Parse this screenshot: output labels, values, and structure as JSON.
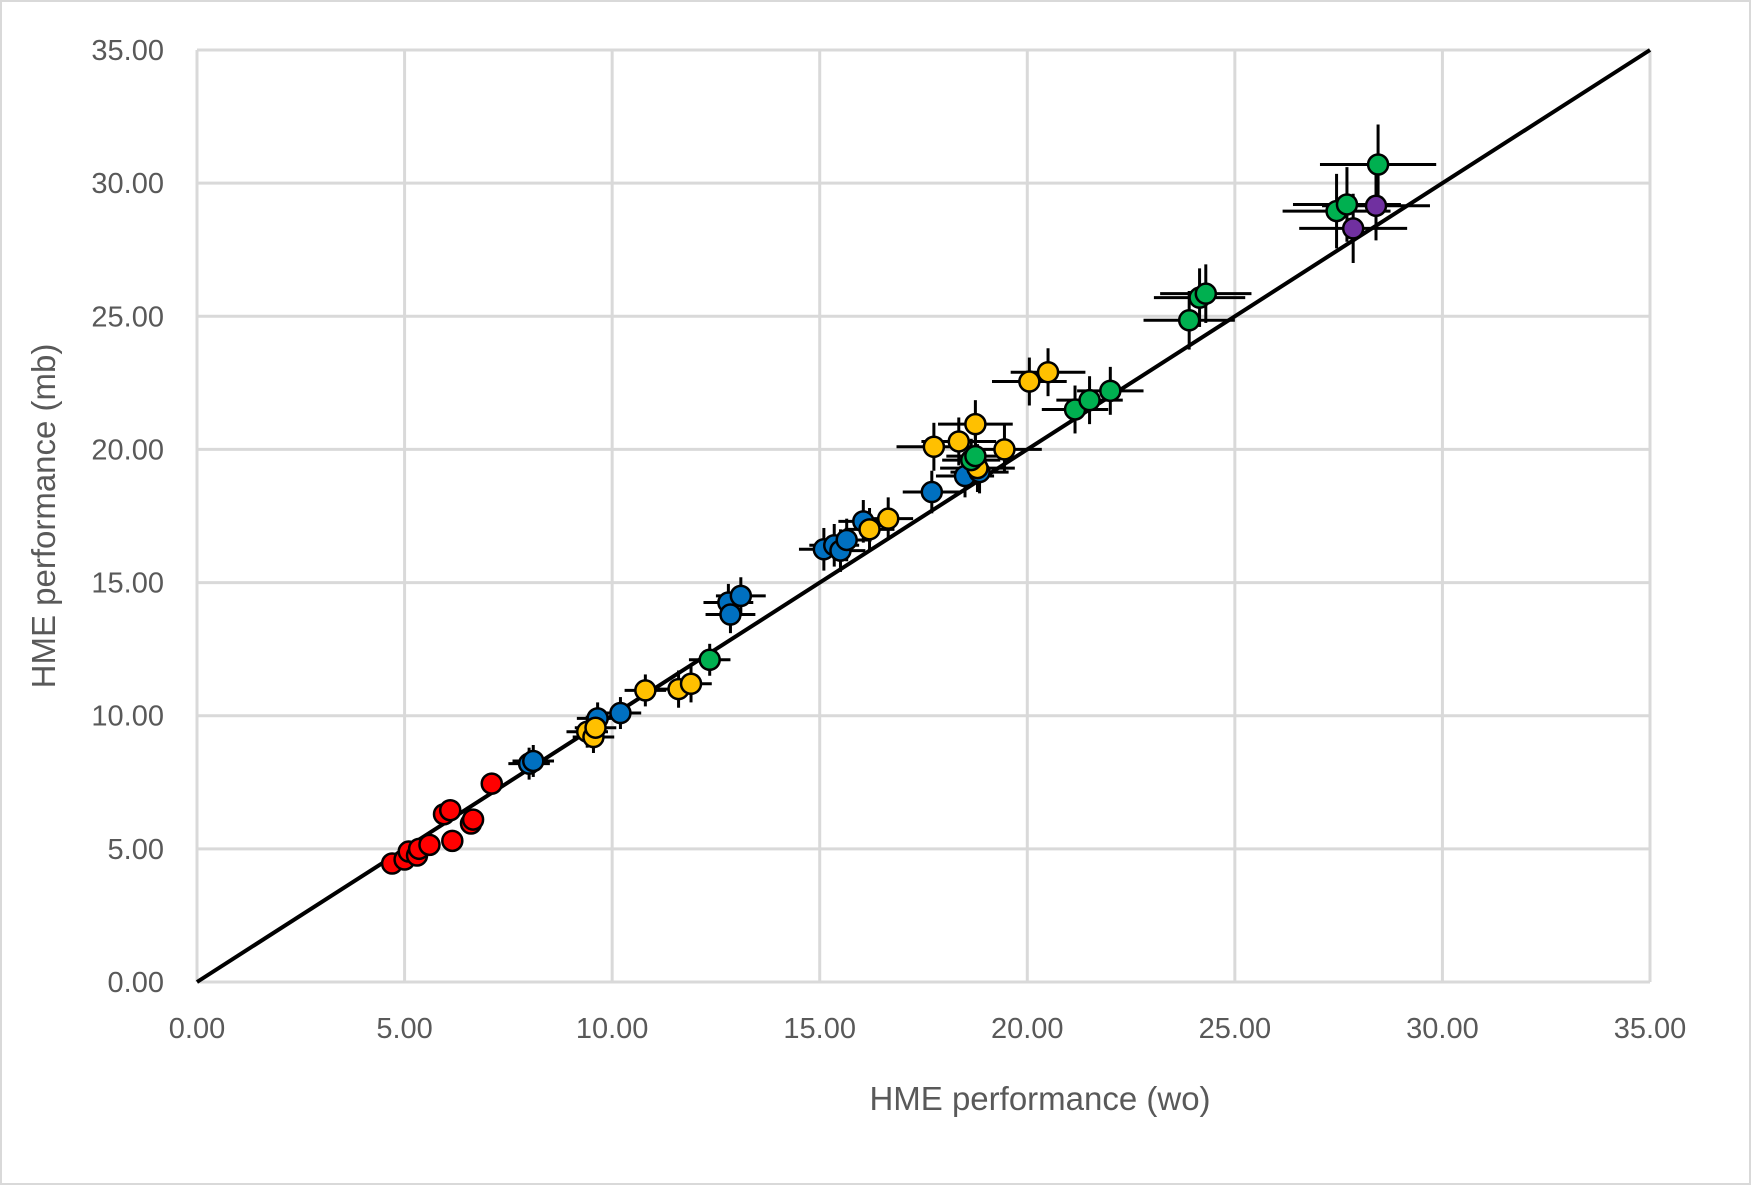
{
  "chart_data": {
    "type": "scatter",
    "title": "",
    "xlabel": "HME performance (wo)",
    "ylabel": "HME performance (mb)",
    "xlim": [
      0,
      35
    ],
    "ylim": [
      0,
      35
    ],
    "x_ticks": [
      "0.00",
      "5.00",
      "10.00",
      "15.00",
      "20.00",
      "25.00",
      "30.00",
      "35.00"
    ],
    "y_ticks": [
      "0.00",
      "5.00",
      "10.00",
      "15.00",
      "20.00",
      "25.00",
      "30.00",
      "35.00"
    ],
    "grid": true,
    "legend": "none",
    "reference_line": {
      "type": "identity",
      "from": [
        0,
        0
      ],
      "to": [
        35,
        35
      ],
      "color": "#000000"
    },
    "series": [
      {
        "color": "#ff0000",
        "points": [
          {
            "x": 4.7,
            "y": 4.45,
            "xerr": 0.15,
            "yerr": 0.15
          },
          {
            "x": 5.0,
            "y": 4.6,
            "xerr": 0.15,
            "yerr": 0.15
          },
          {
            "x": 5.1,
            "y": 4.9,
            "xerr": 0.15,
            "yerr": 0.15
          },
          {
            "x": 5.3,
            "y": 4.75,
            "xerr": 0.15,
            "yerr": 0.15
          },
          {
            "x": 5.35,
            "y": 5.0,
            "xerr": 0.15,
            "yerr": 0.15
          },
          {
            "x": 5.6,
            "y": 5.15,
            "xerr": 0.15,
            "yerr": 0.15
          },
          {
            "x": 5.95,
            "y": 6.3,
            "xerr": 0.15,
            "yerr": 0.15
          },
          {
            "x": 6.1,
            "y": 6.45,
            "xerr": 0.15,
            "yerr": 0.15
          },
          {
            "x": 6.15,
            "y": 5.3,
            "xerr": 0.15,
            "yerr": 0.15
          },
          {
            "x": 6.6,
            "y": 5.95,
            "xerr": 0.15,
            "yerr": 0.15
          },
          {
            "x": 6.65,
            "y": 6.1,
            "xerr": 0.15,
            "yerr": 0.15
          },
          {
            "x": 7.1,
            "y": 7.45,
            "xerr": 0.15,
            "yerr": 0.15
          }
        ]
      },
      {
        "color": "#0070c0",
        "points": [
          {
            "x": 8.0,
            "y": 8.2,
            "xerr": 0.5,
            "yerr": 0.6
          },
          {
            "x": 8.1,
            "y": 8.3,
            "xerr": 0.5,
            "yerr": 0.6
          },
          {
            "x": 9.65,
            "y": 9.9,
            "xerr": 0.5,
            "yerr": 0.6
          },
          {
            "x": 10.2,
            "y": 10.1,
            "xerr": 0.5,
            "yerr": 0.6
          },
          {
            "x": 12.8,
            "y": 14.25,
            "xerr": 0.6,
            "yerr": 0.7
          },
          {
            "x": 12.85,
            "y": 13.8,
            "xerr": 0.6,
            "yerr": 0.7
          },
          {
            "x": 13.1,
            "y": 14.5,
            "xerr": 0.6,
            "yerr": 0.7
          },
          {
            "x": 15.1,
            "y": 16.25,
            "xerr": 0.6,
            "yerr": 0.8
          },
          {
            "x": 15.35,
            "y": 16.4,
            "xerr": 0.6,
            "yerr": 0.8
          },
          {
            "x": 15.5,
            "y": 16.2,
            "xerr": 0.6,
            "yerr": 0.8
          },
          {
            "x": 15.65,
            "y": 16.6,
            "xerr": 0.6,
            "yerr": 0.8
          },
          {
            "x": 16.05,
            "y": 17.3,
            "xerr": 0.6,
            "yerr": 0.8
          },
          {
            "x": 17.7,
            "y": 18.4,
            "xerr": 0.7,
            "yerr": 0.8
          },
          {
            "x": 18.5,
            "y": 19.0,
            "xerr": 0.7,
            "yerr": 0.8
          },
          {
            "x": 18.85,
            "y": 19.15,
            "xerr": 0.7,
            "yerr": 0.8
          }
        ]
      },
      {
        "color": "#ffc000",
        "points": [
          {
            "x": 9.4,
            "y": 9.4,
            "xerr": 0.5,
            "yerr": 0.6
          },
          {
            "x": 9.55,
            "y": 9.2,
            "xerr": 0.5,
            "yerr": 0.6
          },
          {
            "x": 9.6,
            "y": 9.55,
            "xerr": 0.5,
            "yerr": 0.6
          },
          {
            "x": 10.8,
            "y": 10.95,
            "xerr": 0.5,
            "yerr": 0.6
          },
          {
            "x": 11.6,
            "y": 11.0,
            "xerr": 0.5,
            "yerr": 0.7
          },
          {
            "x": 11.9,
            "y": 11.2,
            "xerr": 0.5,
            "yerr": 0.7
          },
          {
            "x": 16.2,
            "y": 17.0,
            "xerr": 0.6,
            "yerr": 0.8
          },
          {
            "x": 16.65,
            "y": 17.4,
            "xerr": 0.6,
            "yerr": 0.8
          },
          {
            "x": 17.75,
            "y": 20.1,
            "xerr": 0.9,
            "yerr": 0.9
          },
          {
            "x": 18.35,
            "y": 20.3,
            "xerr": 0.9,
            "yerr": 0.9
          },
          {
            "x": 18.75,
            "y": 20.95,
            "xerr": 0.9,
            "yerr": 0.9
          },
          {
            "x": 18.8,
            "y": 19.3,
            "xerr": 0.9,
            "yerr": 0.9
          },
          {
            "x": 19.45,
            "y": 20.0,
            "xerr": 0.9,
            "yerr": 0.9
          },
          {
            "x": 20.05,
            "y": 22.55,
            "xerr": 0.9,
            "yerr": 0.9
          },
          {
            "x": 20.5,
            "y": 22.9,
            "xerr": 0.9,
            "yerr": 0.9
          }
        ]
      },
      {
        "color": "#00b050",
        "points": [
          {
            "x": 12.35,
            "y": 12.1,
            "xerr": 0.5,
            "yerr": 0.6
          },
          {
            "x": 18.65,
            "y": 19.6,
            "xerr": 0.7,
            "yerr": 0.8
          },
          {
            "x": 18.75,
            "y": 19.75,
            "xerr": 0.7,
            "yerr": 0.8
          },
          {
            "x": 21.15,
            "y": 21.5,
            "xerr": 0.8,
            "yerr": 0.9
          },
          {
            "x": 21.5,
            "y": 21.85,
            "xerr": 0.8,
            "yerr": 0.9
          },
          {
            "x": 22.0,
            "y": 22.2,
            "xerr": 0.8,
            "yerr": 0.9
          },
          {
            "x": 23.9,
            "y": 24.85,
            "xerr": 1.1,
            "yerr": 1.1
          },
          {
            "x": 24.15,
            "y": 25.7,
            "xerr": 1.1,
            "yerr": 1.1
          },
          {
            "x": 24.3,
            "y": 25.85,
            "xerr": 1.1,
            "yerr": 1.1
          },
          {
            "x": 27.45,
            "y": 28.95,
            "xerr": 1.3,
            "yerr": 1.4
          },
          {
            "x": 27.7,
            "y": 29.2,
            "xerr": 1.3,
            "yerr": 1.4
          },
          {
            "x": 28.45,
            "y": 30.7,
            "xerr": 1.4,
            "yerr": 1.5
          }
        ]
      },
      {
        "color": "#7030a0",
        "points": [
          {
            "x": 27.85,
            "y": 28.3,
            "xerr": 1.3,
            "yerr": 1.3
          },
          {
            "x": 28.4,
            "y": 29.15,
            "xerr": 1.3,
            "yerr": 1.3
          }
        ]
      }
    ]
  }
}
